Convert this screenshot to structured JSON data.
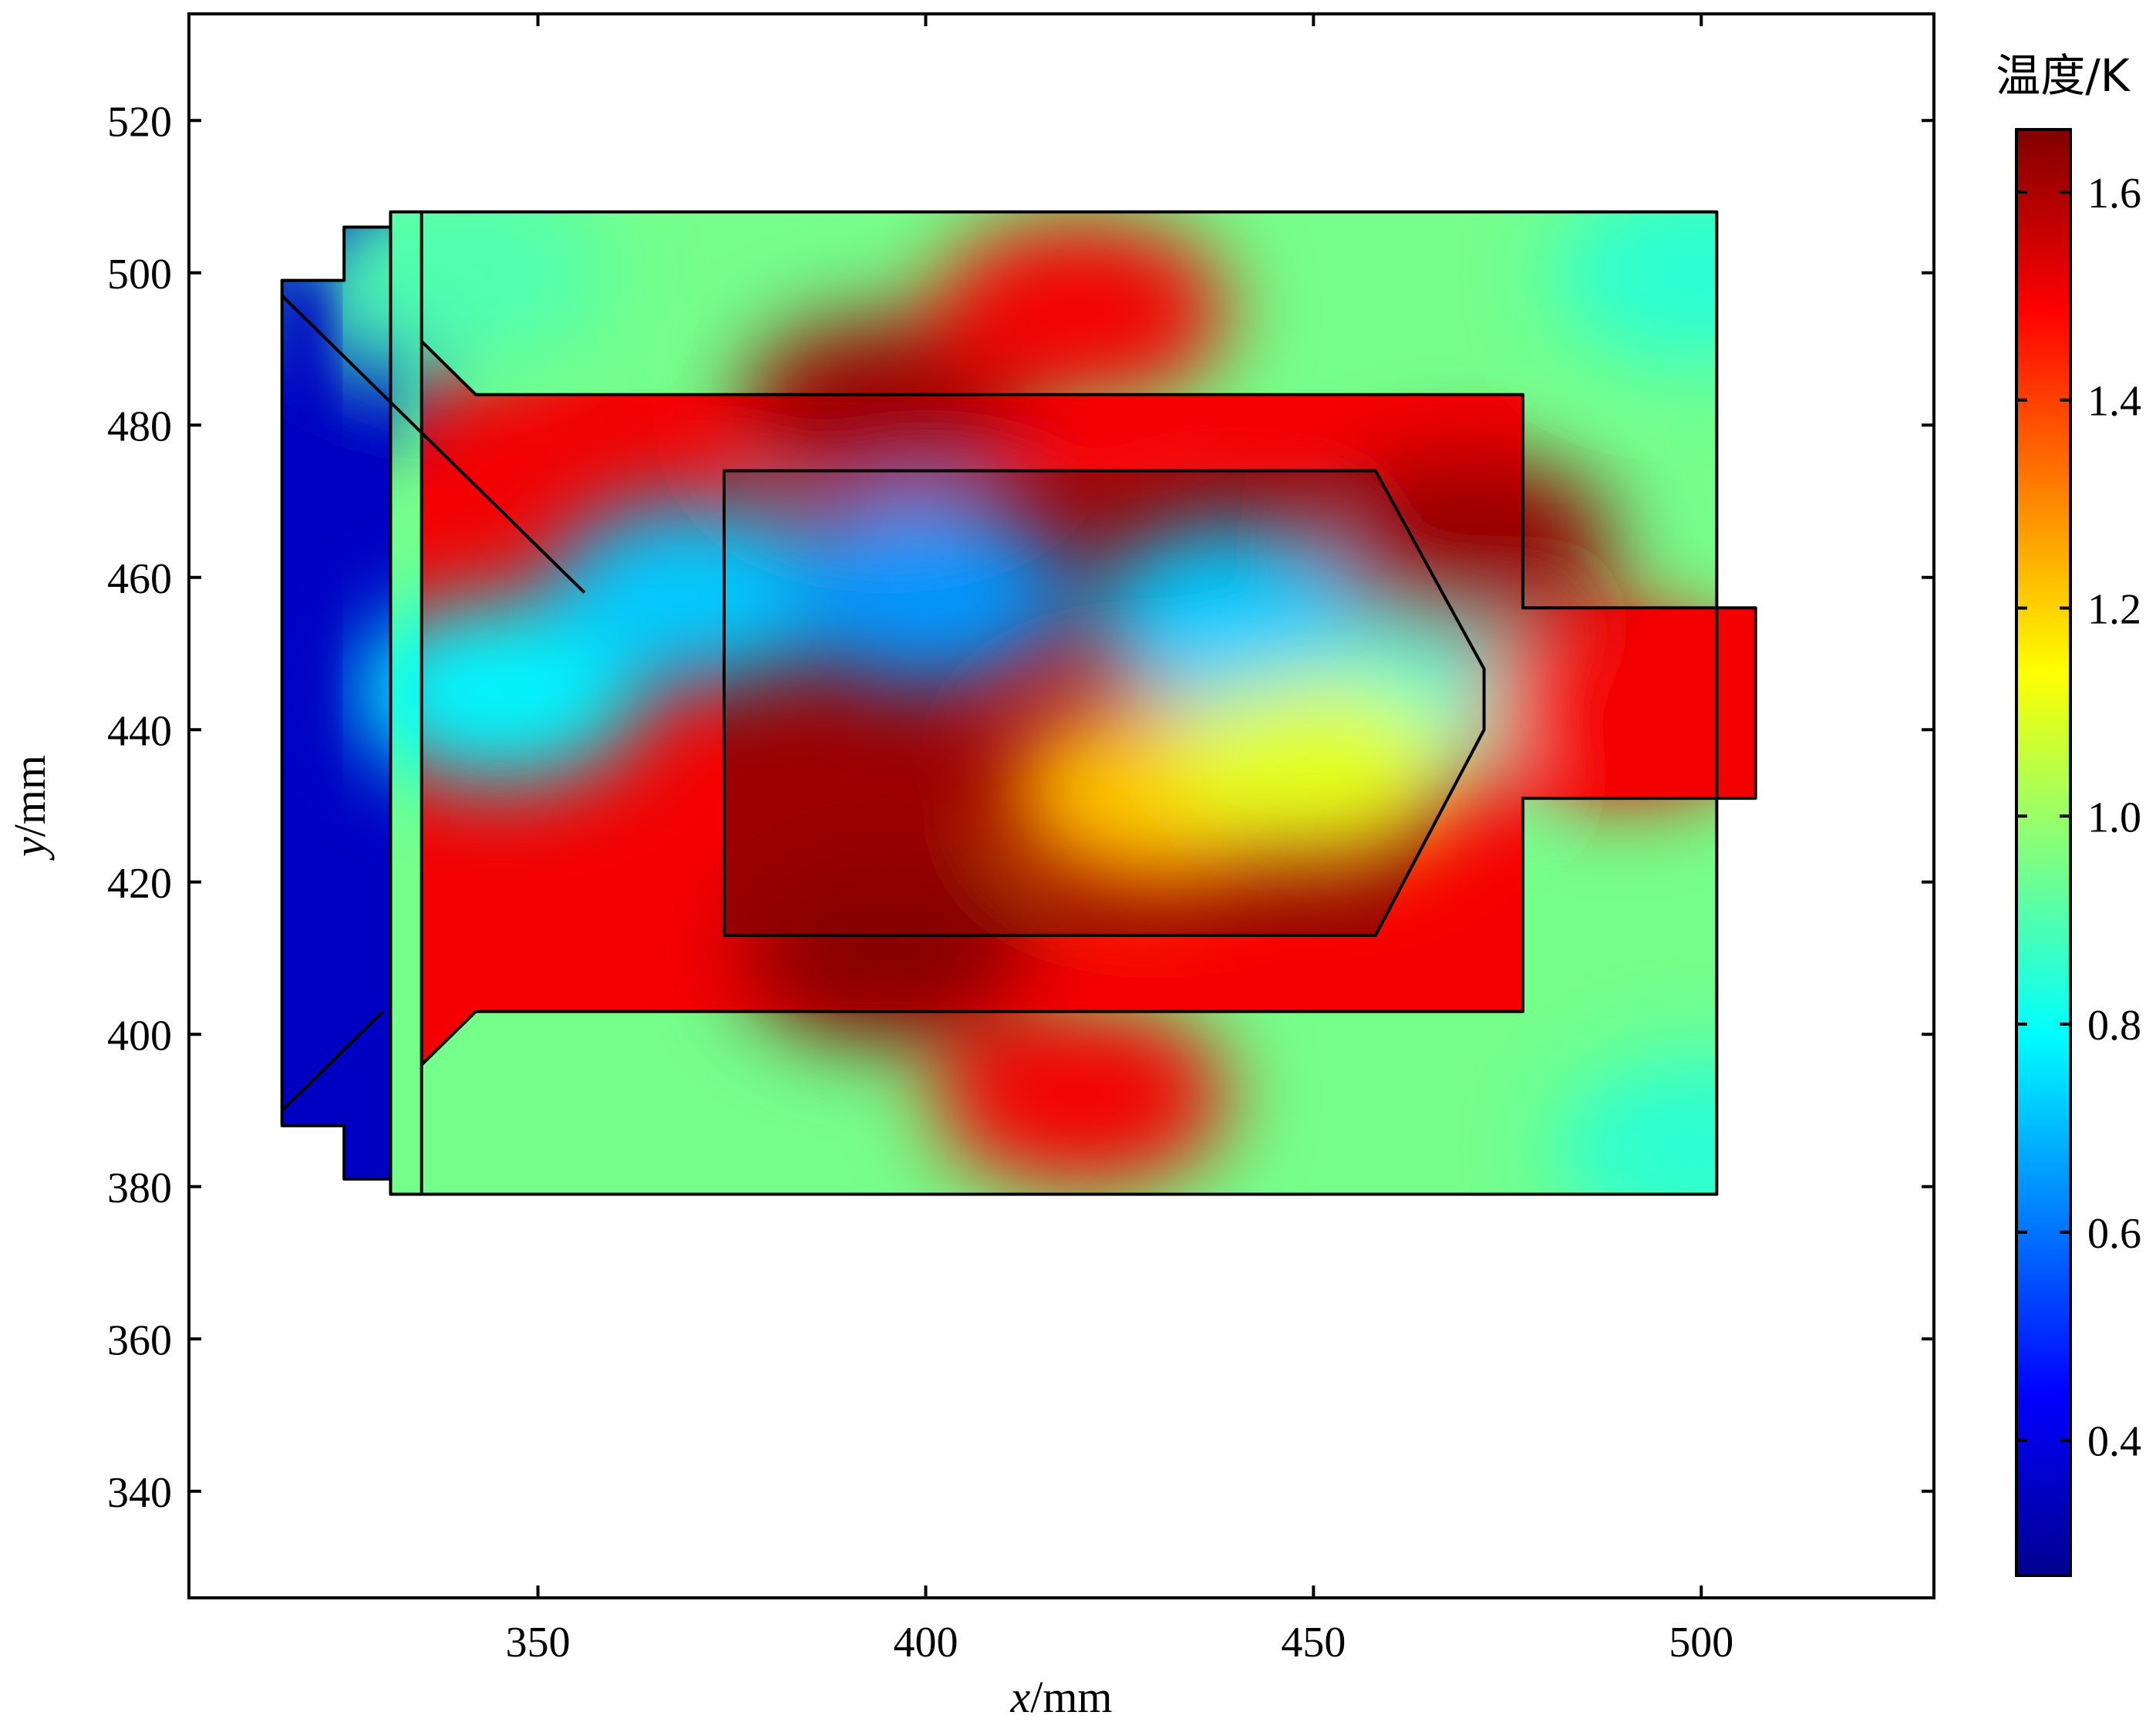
{
  "chart_data": {
    "type": "heatmap",
    "title": "",
    "xlabel": {
      "var": "x",
      "unit": "/mm"
    },
    "ylabel": {
      "var": "y",
      "unit": "/mm"
    },
    "xlim": [
      305,
      530
    ],
    "ylim": [
      326,
      534
    ],
    "xticks": [
      350,
      400,
      450,
      500
    ],
    "yticks": [
      340,
      360,
      380,
      400,
      420,
      440,
      460,
      480,
      500,
      520
    ],
    "grid": false,
    "colorbar": {
      "title": "温度/K",
      "range": [
        0.27,
        1.66
      ],
      "ticks": [
        0.4,
        0.6,
        0.8,
        1.0,
        1.2,
        1.4,
        1.6
      ],
      "tick_labels": [
        "0.4",
        "0.6",
        "0.8",
        "1.0",
        "1.2",
        "1.4",
        "1.6"
      ],
      "colormap": [
        "#00008f",
        "#0000ff",
        "#0080ff",
        "#00ffff",
        "#80ff80",
        "#ffff00",
        "#ff8000",
        "#ff0000",
        "#800000"
      ]
    },
    "regions": [
      {
        "name": "outer-domain",
        "outline": [
          [
            331,
            508
          ],
          [
            502,
            508
          ],
          [
            502,
            379
          ],
          [
            331,
            379
          ]
        ],
        "value": 0.95
      },
      {
        "name": "left-chamber",
        "outline": [
          [
            317,
            499
          ],
          [
            325,
            499
          ],
          [
            325,
            506
          ],
          [
            331,
            506
          ],
          [
            331,
            381
          ],
          [
            325,
            381
          ],
          [
            325,
            388
          ],
          [
            317,
            388
          ]
        ],
        "value": 0.35
      },
      {
        "name": "outer-nozzle-wall",
        "outline": [
          [
            335,
            508
          ],
          [
            335,
            491
          ],
          [
            342,
            484
          ],
          [
            477,
            484
          ],
          [
            477,
            456
          ],
          [
            507,
            456
          ],
          [
            507,
            431
          ],
          [
            477,
            431
          ],
          [
            477,
            403
          ],
          [
            342,
            403
          ],
          [
            335,
            396
          ],
          [
            335,
            379
          ]
        ],
        "value": 1.5
      },
      {
        "name": "inner-nozzle-wall",
        "outline": [
          [
            374,
            474
          ],
          [
            458,
            474
          ],
          [
            472,
            448
          ],
          [
            472,
            440
          ],
          [
            458,
            413
          ],
          [
            374,
            413
          ]
        ],
        "value": 1.62
      }
    ],
    "field_samples": [
      {
        "x": 320,
        "y": 490,
        "value": 0.35
      },
      {
        "x": 345,
        "y": 445,
        "value": 0.78
      },
      {
        "x": 340,
        "y": 500,
        "value": 0.9
      },
      {
        "x": 370,
        "y": 458,
        "value": 0.72
      },
      {
        "x": 400,
        "y": 458,
        "value": 0.65
      },
      {
        "x": 440,
        "y": 455,
        "value": 0.72
      },
      {
        "x": 470,
        "y": 445,
        "value": 0.82
      },
      {
        "x": 395,
        "y": 482,
        "value": 1.62
      },
      {
        "x": 395,
        "y": 411,
        "value": 1.65
      },
      {
        "x": 470,
        "y": 464,
        "value": 1.63
      },
      {
        "x": 430,
        "y": 432,
        "value": 1.22
      },
      {
        "x": 450,
        "y": 435,
        "value": 1.1
      },
      {
        "x": 500,
        "y": 500,
        "value": 0.85
      },
      {
        "x": 500,
        "y": 385,
        "value": 0.85
      },
      {
        "x": 420,
        "y": 495,
        "value": 1.5
      },
      {
        "x": 420,
        "y": 392,
        "value": 1.5
      },
      {
        "x": 490,
        "y": 443,
        "value": 1.5
      }
    ]
  }
}
